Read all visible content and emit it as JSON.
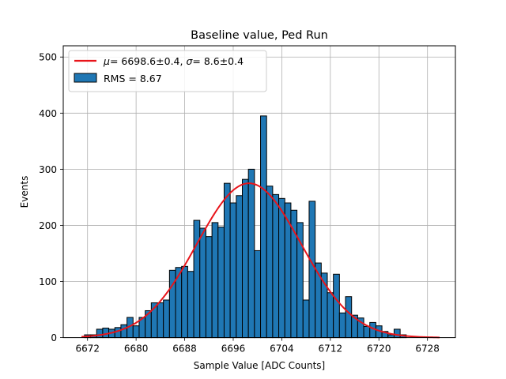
{
  "chart_data": {
    "type": "bar",
    "title": "Baseline value, Ped Run",
    "xlabel": "Sample Value [ADC Counts]",
    "ylabel": "Events",
    "xlim": [
      6668,
      6732.6
    ],
    "ylim": [
      0,
      520
    ],
    "grid": true,
    "xticks": [
      6672,
      6680,
      6688,
      6696,
      6704,
      6712,
      6720,
      6728
    ],
    "yticks": [
      0,
      100,
      200,
      300,
      400,
      500
    ],
    "bin_width": 1,
    "bins": [
      [
        6672,
        5
      ],
      [
        6673,
        5
      ],
      [
        6674,
        15
      ],
      [
        6675,
        17
      ],
      [
        6676,
        15
      ],
      [
        6677,
        18
      ],
      [
        6678,
        23
      ],
      [
        6679,
        36
      ],
      [
        6680,
        21
      ],
      [
        6681,
        36
      ],
      [
        6682,
        48
      ],
      [
        6683,
        62
      ],
      [
        6684,
        62
      ],
      [
        6685,
        67
      ],
      [
        6686,
        120
      ],
      [
        6687,
        125
      ],
      [
        6688,
        127
      ],
      [
        6689,
        118
      ],
      [
        6690,
        209
      ],
      [
        6691,
        195
      ],
      [
        6692,
        180
      ],
      [
        6693,
        205
      ],
      [
        6694,
        197
      ],
      [
        6695,
        275
      ],
      [
        6696,
        240
      ],
      [
        6697,
        253
      ],
      [
        6698,
        282
      ],
      [
        6699,
        300
      ],
      [
        6700,
        155
      ],
      [
        6701,
        395
      ],
      [
        6702,
        270
      ],
      [
        6703,
        255
      ],
      [
        6704,
        248
      ],
      [
        6705,
        240
      ],
      [
        6706,
        227
      ],
      [
        6707,
        205
      ],
      [
        6708,
        67
      ],
      [
        6709,
        243
      ],
      [
        6710,
        133
      ],
      [
        6711,
        115
      ],
      [
        6712,
        80
      ],
      [
        6713,
        113
      ],
      [
        6714,
        44
      ],
      [
        6715,
        73
      ],
      [
        6716,
        40
      ],
      [
        6717,
        35
      ],
      [
        6718,
        20
      ],
      [
        6719,
        27
      ],
      [
        6720,
        21
      ],
      [
        6721,
        11
      ],
      [
        6722,
        5
      ],
      [
        6723,
        15
      ],
      [
        6724,
        5
      ]
    ],
    "fit": {
      "type": "gaussian",
      "mean": 6698.6,
      "sigma": 8.6,
      "amplitude": 275,
      "range": [
        6671,
        6730
      ],
      "color": "#e8141a",
      "label": "$\\mu=$6698.6±0.4, $\\sigma=$8.6±0.4"
    },
    "bar_color": "#1f77b4",
    "legend": {
      "placement": "upper-left",
      "fit_mu_symbol": "μ",
      "fit_mu_text": "= 6698.6±0.4, ",
      "fit_sigma_symbol": "σ",
      "fit_sigma_text": "= 8.6±0.4",
      "hist_label": "RMS = 8.67"
    }
  }
}
